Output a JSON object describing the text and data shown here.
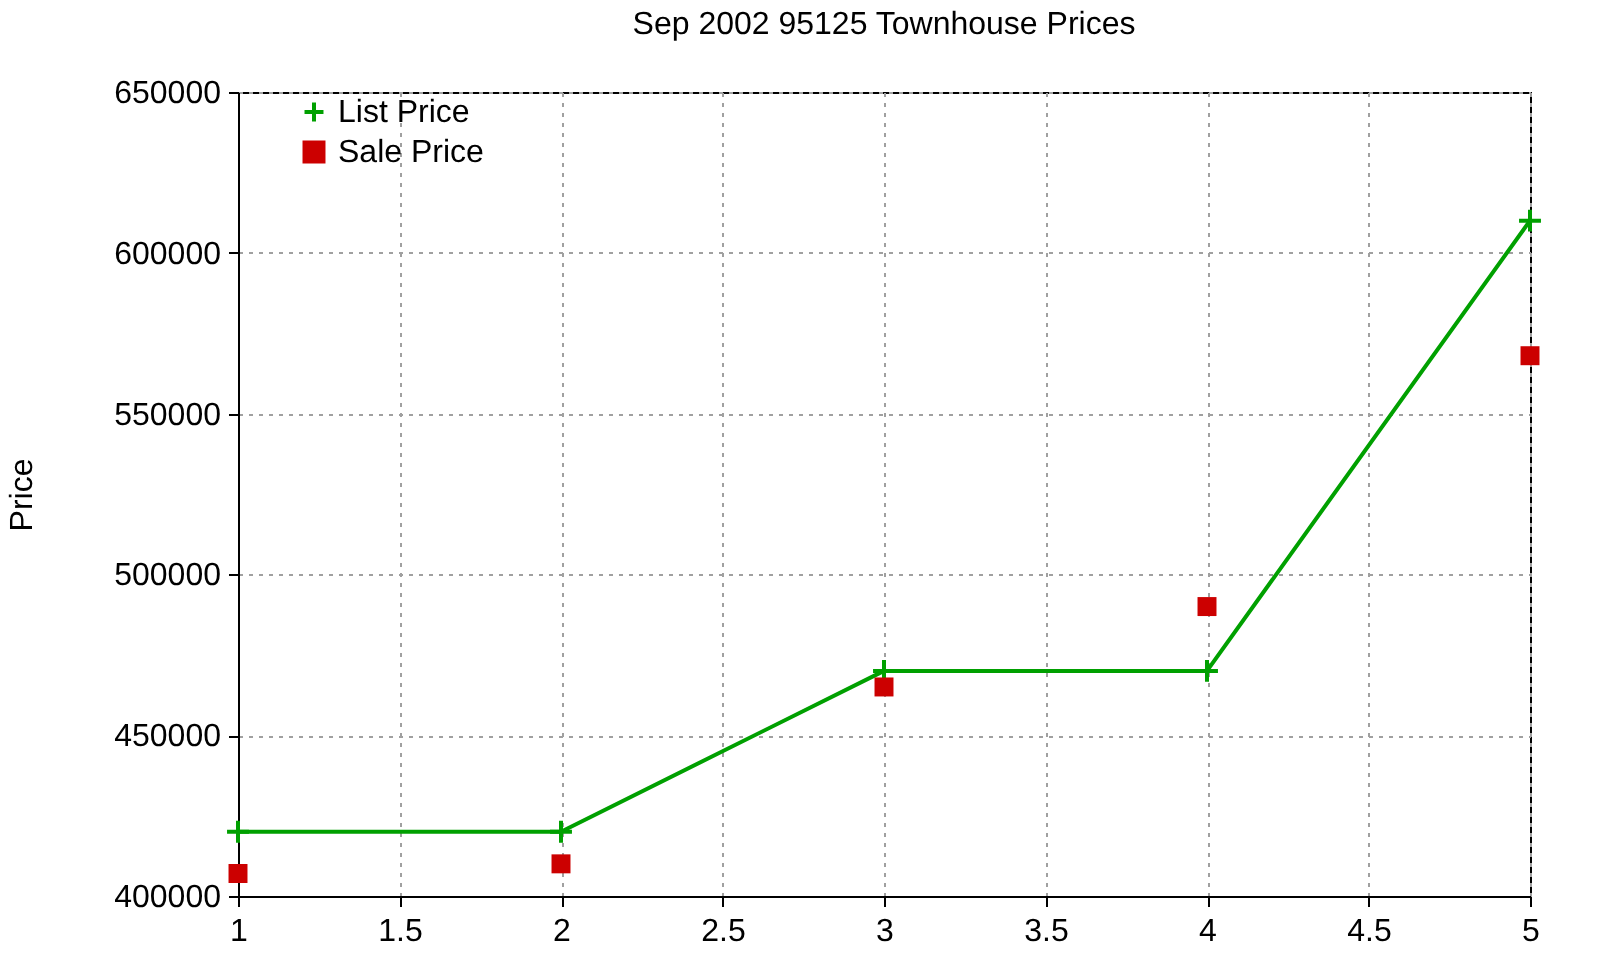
{
  "chart_data": {
    "type": "line",
    "title": "Sep 2002 95125 Townhouse Prices",
    "ylabel": "Price",
    "x": [
      1,
      2,
      3,
      4,
      5
    ],
    "series": [
      {
        "name": "List Price",
        "marker": "cross",
        "line_style": "solid",
        "color": "#00a000",
        "values": [
          420000,
          420000,
          470000,
          470000,
          610000
        ]
      },
      {
        "name": "Sale Price",
        "type": "scatter",
        "marker": "square",
        "color": "#cc0000",
        "values": [
          407000,
          410000,
          465000,
          490000,
          568000
        ]
      }
    ],
    "xlim": [
      1,
      5
    ],
    "xticks": [
      1,
      1.5,
      2,
      2.5,
      3,
      3.5,
      4,
      4.5,
      5
    ],
    "ylim": [
      400000,
      650000
    ],
    "yticks": [
      400000,
      450000,
      500000,
      550000,
      600000,
      650000
    ],
    "grid": true,
    "legend": "top left"
  }
}
